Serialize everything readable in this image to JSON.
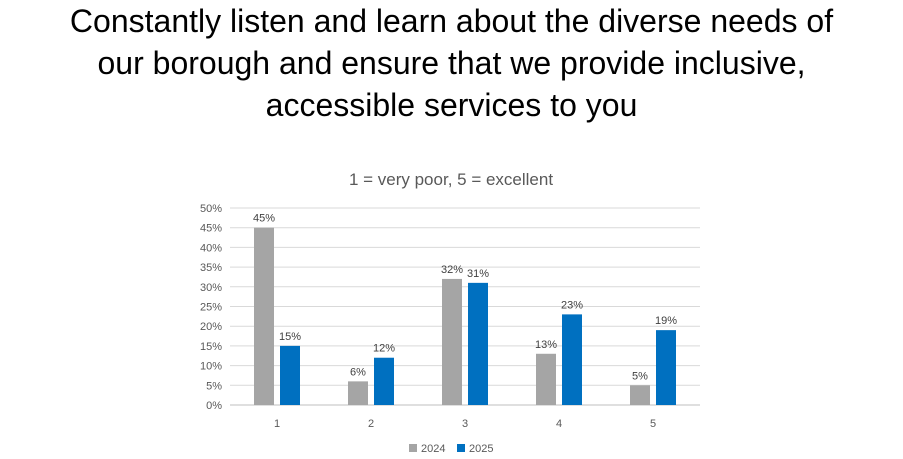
{
  "headline": {
    "lines": [
      "Constantly listen and learn about the diverse needs of",
      "our borough and ensure that we provide inclusive,",
      "accessible services to you"
    ]
  },
  "chart_data": {
    "type": "bar",
    "title": "1 = very poor, 5 = excellent",
    "xlabel": "",
    "ylabel": "",
    "categories": [
      "1",
      "2",
      "3",
      "4",
      "5"
    ],
    "series": [
      {
        "name": "2024",
        "color": "#a5a5a5",
        "values": [
          45,
          6,
          32,
          13,
          5
        ],
        "labels": [
          "45%",
          "6%",
          "32%",
          "13%",
          "5%"
        ]
      },
      {
        "name": "2025",
        "color": "#0070c0",
        "values": [
          15,
          12,
          31,
          23,
          19
        ],
        "labels": [
          "15%",
          "12%",
          "31%",
          "23%",
          "19%"
        ]
      }
    ],
    "ylim": [
      0,
      50
    ],
    "yticks": [
      "0%",
      "5%",
      "10%",
      "15%",
      "20%",
      "25%",
      "30%",
      "35%",
      "40%",
      "45%",
      "50%"
    ],
    "grid": true,
    "legend_position": "bottom"
  }
}
